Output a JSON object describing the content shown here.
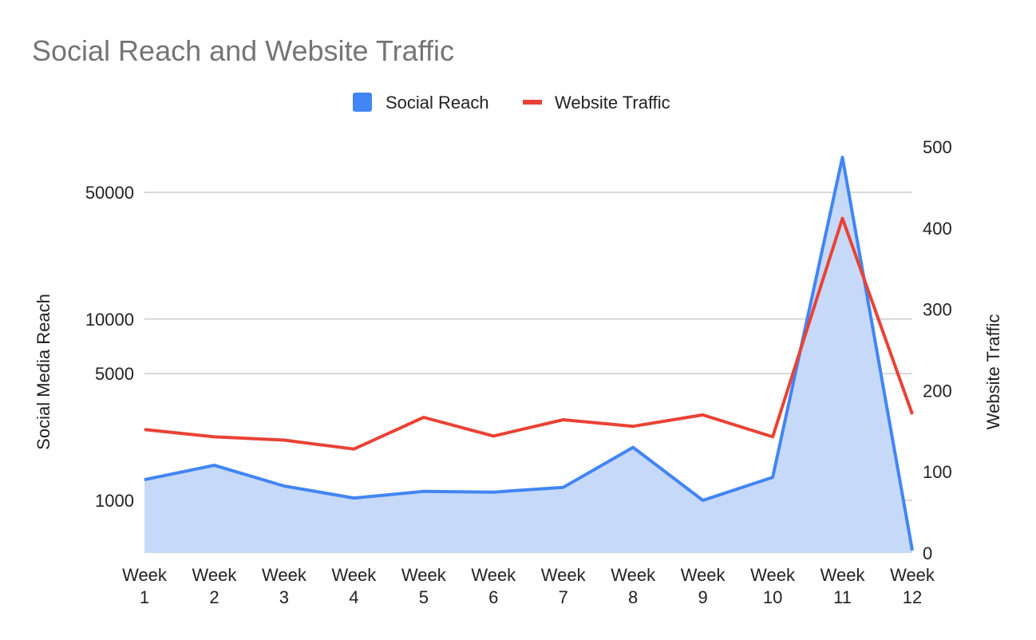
{
  "chart_data": {
    "type": "area-line-combo",
    "title": "Social Reach and Website Traffic",
    "categories": [
      "Week 1",
      "Week 2",
      "Week 3",
      "Week 4",
      "Week 5",
      "Week 6",
      "Week 7",
      "Week 8",
      "Week 9",
      "Week 10",
      "Week 11",
      "Week 12"
    ],
    "series": [
      {
        "name": "Social Reach",
        "type": "area",
        "axis": "left",
        "color": "#4285f4",
        "fill_color": "#c6d9f8",
        "values": [
          1300,
          1560,
          1200,
          1030,
          1120,
          1110,
          1180,
          1960,
          1000,
          1340,
          78000,
          530
        ]
      },
      {
        "name": "Website Traffic",
        "type": "line",
        "axis": "right",
        "color": "#e94235",
        "values": [
          152,
          143,
          139,
          128,
          167,
          144,
          164,
          156,
          170,
          143,
          412,
          171
        ]
      }
    ],
    "y_left": {
      "label": "Social Media Reach",
      "scale": "log",
      "ticks": [
        "1000",
        "5000",
        "10000",
        "50000"
      ],
      "tick_values": [
        1000,
        5000,
        10000,
        50000
      ]
    },
    "y_right": {
      "label": "Website Traffic",
      "scale": "linear",
      "ylim": [
        0,
        500
      ],
      "ticks": [
        "0",
        "100",
        "200",
        "300",
        "400",
        "500"
      ]
    },
    "legend": {
      "position": "top-center",
      "items": [
        "Social Reach",
        "Website Traffic"
      ]
    },
    "x_ticks": [
      {
        "line1": "Week",
        "line2": "1"
      },
      {
        "line1": "Week",
        "line2": "2"
      },
      {
        "line1": "Week",
        "line2": "3"
      },
      {
        "line1": "Week",
        "line2": "4"
      },
      {
        "line1": "Week",
        "line2": "5"
      },
      {
        "line1": "Week",
        "line2": "6"
      },
      {
        "line1": "Week",
        "line2": "7"
      },
      {
        "line1": "Week",
        "line2": "8"
      },
      {
        "line1": "Week",
        "line2": "9"
      },
      {
        "line1": "Week",
        "line2": "10"
      },
      {
        "line1": "Week",
        "line2": "11"
      },
      {
        "line1": "Week",
        "line2": "12"
      }
    ]
  }
}
